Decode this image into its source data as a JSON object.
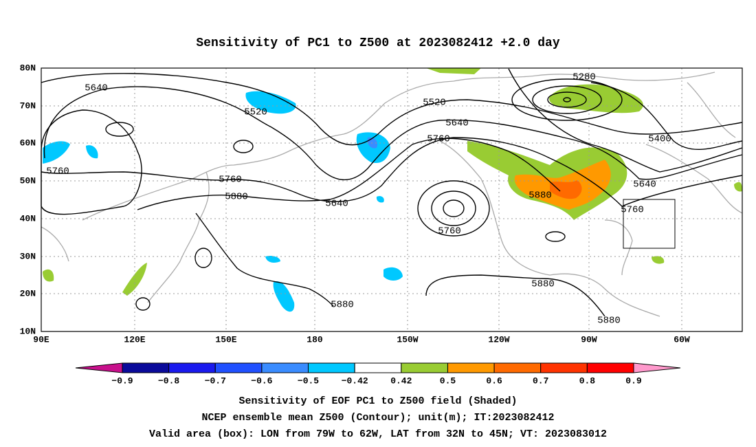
{
  "title": "Sensitivity of PC1 to Z500 at 2023082412 +2.0 day",
  "map": {
    "lat_labels": [
      "80N",
      "70N",
      "60N",
      "50N",
      "40N",
      "30N",
      "20N",
      "10N"
    ],
    "lon_labels": [
      "90E",
      "120E",
      "150E",
      "180",
      "150W",
      "120W",
      "90W",
      "60W"
    ],
    "contour_labels": [
      5640,
      5520,
      5760,
      5760,
      5880,
      5640,
      5520,
      5640,
      5760,
      5760,
      5880,
      5280,
      5400,
      5640,
      5760,
      5880,
      5880,
      5880
    ]
  },
  "colorbar": {
    "labels": [
      "−0.9",
      "−0.8",
      "−0.7",
      "−0.6",
      "−0.5",
      "−0.42",
      "0.42",
      "0.5",
      "0.6",
      "0.7",
      "0.8",
      "0.9"
    ]
  },
  "caption": [
    "Sensitivity of EOF PC1 to Z500 field (Shaded)",
    "NCEP ensemble mean Z500 (Contour); unit(m); IT:2023082412",
    "Valid area (box): LON from 79W to 62W, LAT from 32N to 45N; VT: 2023083012"
  ]
}
